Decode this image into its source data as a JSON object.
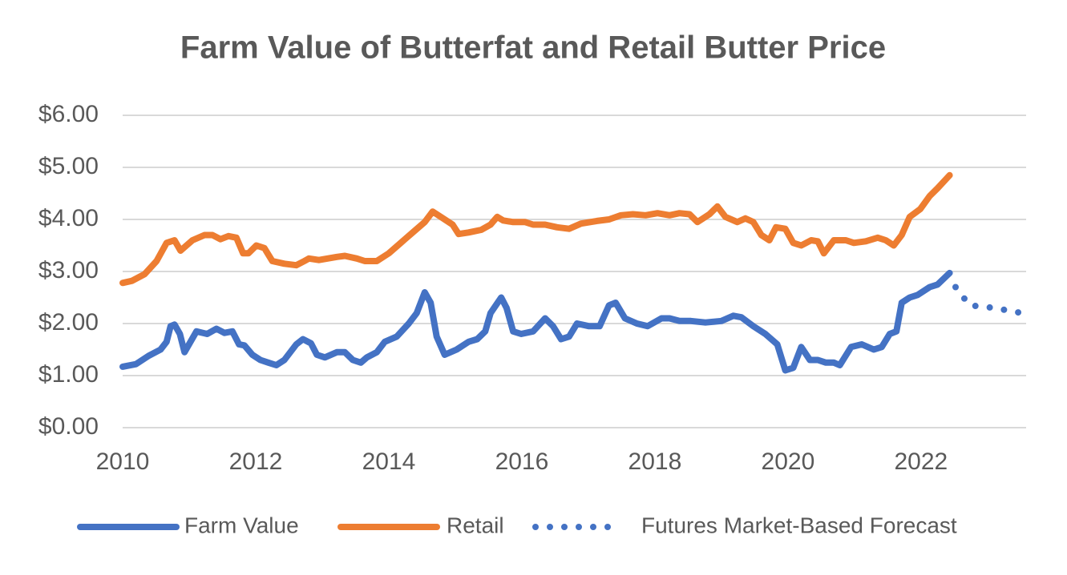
{
  "chart_data": {
    "type": "line",
    "title": "Farm Value of Butterfat and Retail Butter Price",
    "xlim": [
      2010,
      2023.58
    ],
    "xticks": [
      2010,
      2012,
      2014,
      2016,
      2018,
      2020,
      2022
    ],
    "ylim": [
      0,
      6
    ],
    "yticks": [
      {
        "value": 0,
        "label": "$0.00"
      },
      {
        "value": 1,
        "label": "$1.00"
      },
      {
        "value": 2,
        "label": "$2.00"
      },
      {
        "value": 3,
        "label": "$3.00"
      },
      {
        "value": 4,
        "label": "$4.00"
      },
      {
        "value": 5,
        "label": "$5.00"
      },
      {
        "value": 6,
        "label": "$6.00"
      }
    ],
    "grid": true,
    "legend": "bottom",
    "series": [
      {
        "name": "Farm Value",
        "color": "#4472c4",
        "dash": "solid",
        "x": [
          2010.0,
          2010.2,
          2010.39,
          2010.57,
          2010.66,
          2010.72,
          2010.78,
          2010.86,
          2010.93,
          2011.11,
          2011.27,
          2011.41,
          2011.53,
          2011.65,
          2011.75,
          2011.83,
          2011.95,
          2012.07,
          2012.19,
          2012.31,
          2012.43,
          2012.61,
          2012.71,
          2012.83,
          2012.92,
          2013.04,
          2013.22,
          2013.34,
          2013.46,
          2013.58,
          2013.67,
          2013.82,
          2013.94,
          2014.12,
          2014.3,
          2014.42,
          2014.54,
          2014.63,
          2014.72,
          2014.84,
          2015.02,
          2015.2,
          2015.33,
          2015.45,
          2015.53,
          2015.69,
          2015.77,
          2015.87,
          2015.99,
          2016.17,
          2016.35,
          2016.47,
          2016.59,
          2016.71,
          2016.83,
          2017.01,
          2017.17,
          2017.31,
          2017.41,
          2017.55,
          2017.73,
          2017.89,
          2018.1,
          2018.22,
          2018.37,
          2018.54,
          2018.76,
          2019.0,
          2019.18,
          2019.3,
          2019.48,
          2019.66,
          2019.84,
          2019.96,
          2020.08,
          2020.2,
          2020.33,
          2020.45,
          2020.57,
          2020.69,
          2020.78,
          2020.95,
          2021.11,
          2021.29,
          2021.41,
          2021.53,
          2021.63,
          2021.71,
          2021.83,
          2021.95,
          2022.13,
          2022.25,
          2022.43
        ],
        "values": [
          1.17,
          1.22,
          1.38,
          1.5,
          1.65,
          1.95,
          1.98,
          1.8,
          1.45,
          1.85,
          1.8,
          1.9,
          1.82,
          1.85,
          1.6,
          1.58,
          1.4,
          1.3,
          1.25,
          1.2,
          1.3,
          1.6,
          1.7,
          1.62,
          1.4,
          1.35,
          1.45,
          1.45,
          1.3,
          1.25,
          1.35,
          1.45,
          1.65,
          1.75,
          2.0,
          2.2,
          2.6,
          2.4,
          1.75,
          1.4,
          1.5,
          1.65,
          1.7,
          1.85,
          2.2,
          2.5,
          2.3,
          1.85,
          1.8,
          1.85,
          2.1,
          1.95,
          1.7,
          1.75,
          2.0,
          1.95,
          1.95,
          2.35,
          2.4,
          2.1,
          2.0,
          1.95,
          2.1,
          2.1,
          2.05,
          2.05,
          2.02,
          2.05,
          2.15,
          2.12,
          1.95,
          1.8,
          1.6,
          1.1,
          1.15,
          1.55,
          1.3,
          1.3,
          1.25,
          1.25,
          1.2,
          1.55,
          1.6,
          1.5,
          1.55,
          1.8,
          1.85,
          2.4,
          2.5,
          2.55,
          2.7,
          2.75,
          2.97
        ]
      },
      {
        "name": "Retail",
        "color": "#ed7d31",
        "dash": "solid",
        "x": [
          2010.0,
          2010.14,
          2010.33,
          2010.51,
          2010.66,
          2010.78,
          2010.87,
          2011.05,
          2011.23,
          2011.35,
          2011.47,
          2011.59,
          2011.71,
          2011.81,
          2011.89,
          2012.01,
          2012.13,
          2012.25,
          2012.43,
          2012.61,
          2012.73,
          2012.8,
          2012.95,
          2013.22,
          2013.34,
          2013.52,
          2013.64,
          2013.82,
          2014.0,
          2014.18,
          2014.36,
          2014.54,
          2014.66,
          2014.84,
          2014.96,
          2015.05,
          2015.2,
          2015.39,
          2015.53,
          2015.63,
          2015.72,
          2015.87,
          2016.05,
          2016.17,
          2016.35,
          2016.53,
          2016.71,
          2016.89,
          2017.13,
          2017.31,
          2017.49,
          2017.67,
          2017.86,
          2018.04,
          2018.22,
          2018.37,
          2018.52,
          2018.64,
          2018.82,
          2018.94,
          2019.06,
          2019.24,
          2019.36,
          2019.48,
          2019.6,
          2019.72,
          2019.82,
          2019.96,
          2020.08,
          2020.2,
          2020.35,
          2020.45,
          2020.54,
          2020.69,
          2020.87,
          2020.99,
          2021.17,
          2021.35,
          2021.47,
          2021.59,
          2021.71,
          2021.83,
          2021.99,
          2022.13,
          2022.25,
          2022.43
        ],
        "values": [
          2.78,
          2.82,
          2.95,
          3.2,
          3.55,
          3.6,
          3.4,
          3.6,
          3.7,
          3.7,
          3.62,
          3.68,
          3.65,
          3.35,
          3.35,
          3.5,
          3.45,
          3.2,
          3.15,
          3.12,
          3.2,
          3.25,
          3.22,
          3.28,
          3.3,
          3.25,
          3.2,
          3.2,
          3.35,
          3.55,
          3.75,
          3.95,
          4.15,
          4.0,
          3.9,
          3.72,
          3.75,
          3.8,
          3.9,
          4.05,
          3.98,
          3.95,
          3.95,
          3.9,
          3.9,
          3.85,
          3.82,
          3.92,
          3.97,
          4.0,
          4.08,
          4.1,
          4.08,
          4.12,
          4.08,
          4.12,
          4.1,
          3.95,
          4.1,
          4.25,
          4.05,
          3.95,
          4.02,
          3.95,
          3.7,
          3.6,
          3.85,
          3.82,
          3.55,
          3.5,
          3.6,
          3.58,
          3.35,
          3.6,
          3.6,
          3.55,
          3.58,
          3.65,
          3.6,
          3.5,
          3.7,
          4.05,
          4.2,
          4.45,
          4.6,
          4.85
        ]
      },
      {
        "name": "Futures Market-Based Forecast",
        "color": "#4472c4",
        "dash": "dot",
        "x": [
          2022.52,
          2022.73,
          2023.1,
          2023.52
        ],
        "values": [
          2.7,
          2.35,
          2.3,
          2.2
        ]
      }
    ]
  }
}
